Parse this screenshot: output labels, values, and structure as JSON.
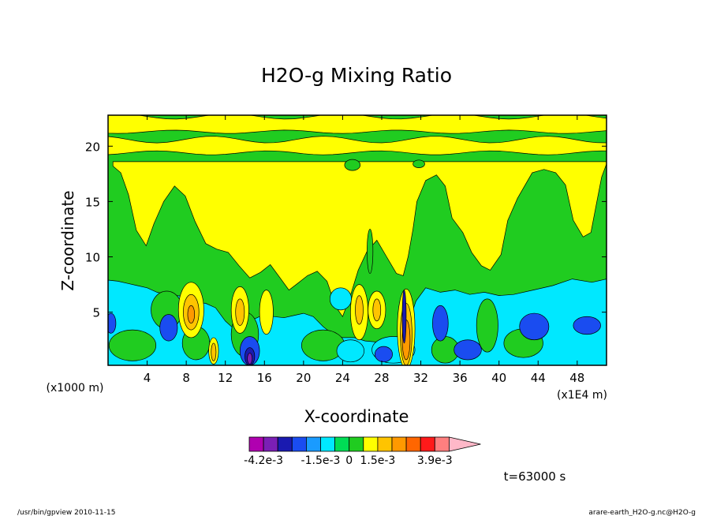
{
  "chart_data": {
    "type": "heatmap",
    "title": "H2O-g Mixing Ratio",
    "xlabel": "X-coordinate",
    "ylabel": "Z-coordinate",
    "x_scale_label": "(x1E4 m)",
    "y_scale_label": "(x1000 m)",
    "xlim": [
      0,
      51
    ],
    "ylim": [
      0.2,
      22.8
    ],
    "x_ticks": [
      4,
      8,
      12,
      16,
      20,
      24,
      28,
      32,
      36,
      40,
      44,
      48
    ],
    "y_ticks": [
      5,
      10,
      15,
      20
    ],
    "time_label": "t=63000 s",
    "colorbar": {
      "colors": [
        "#b000b0",
        "#7b1fb5",
        "#1a1ab0",
        "#1a4cf0",
        "#1a9bff",
        "#00e8ff",
        "#00dd55",
        "#20cc20",
        "#ffff00",
        "#ffc400",
        "#ff9900",
        "#ff6600",
        "#ff1a1a",
        "#ff7f7f",
        "#ffb8c8"
      ],
      "tick_labels": [
        "-4.2e-3",
        "-1.5e-3",
        "0",
        "1.5e-3",
        "3.9e-3"
      ]
    },
    "regions": [
      {
        "kind": "rect",
        "color": "#20cc20",
        "x0": 0,
        "x1": 51,
        "y0": 0.2,
        "y1": 22.8
      },
      {
        "kind": "band",
        "color": "#ffff00",
        "y_mid": 22.0,
        "half": 0.7,
        "amp": 0.25
      },
      {
        "kind": "band",
        "color": "#ffff00",
        "y_mid": 20.0,
        "half": 0.6,
        "amp": 0.3
      },
      {
        "kind": "poly",
        "color": "#ffff00",
        "pts": [
          [
            0.5,
            18.6
          ],
          [
            51,
            18.6
          ],
          [
            51,
            18.4
          ],
          [
            50.5,
            17.2
          ],
          [
            49.9,
            14.5
          ],
          [
            49.4,
            12.2
          ],
          [
            48.6,
            11.8
          ],
          [
            47.6,
            13.3
          ],
          [
            46.8,
            16.5
          ],
          [
            45.8,
            17.6
          ],
          [
            44.6,
            17.9
          ],
          [
            43.4,
            17.6
          ],
          [
            41.9,
            15.3
          ],
          [
            40.9,
            13.3
          ],
          [
            40.2,
            10.2
          ],
          [
            39.1,
            8.8
          ],
          [
            38.2,
            9.2
          ],
          [
            37.2,
            10.4
          ],
          [
            36.3,
            12.2
          ],
          [
            35.2,
            13.5
          ],
          [
            34.5,
            16.4
          ],
          [
            33.6,
            17.4
          ],
          [
            32.5,
            16.9
          ],
          [
            31.6,
            15.0
          ],
          [
            31.2,
            12.5
          ],
          [
            30.7,
            10.0
          ],
          [
            30.2,
            8.3
          ],
          [
            29.5,
            8.5
          ],
          [
            28.5,
            10.0
          ],
          [
            27.5,
            11.5
          ],
          [
            26.5,
            10.5
          ],
          [
            25.6,
            8.8
          ],
          [
            24.8,
            6.5
          ],
          [
            24.0,
            4.6
          ],
          [
            23.3,
            5.5
          ],
          [
            22.4,
            7.8
          ],
          [
            21.4,
            8.7
          ],
          [
            20.4,
            8.3
          ],
          [
            19.4,
            7.6
          ],
          [
            18.5,
            7.0
          ],
          [
            17.6,
            8.1
          ],
          [
            16.6,
            9.3
          ],
          [
            15.6,
            8.6
          ],
          [
            14.5,
            8.1
          ],
          [
            13.4,
            9.2
          ],
          [
            12.3,
            10.4
          ],
          [
            11.1,
            10.7
          ],
          [
            10.0,
            11.2
          ],
          [
            8.9,
            13.2
          ],
          [
            7.9,
            15.5
          ],
          [
            6.8,
            16.4
          ],
          [
            5.7,
            15.0
          ],
          [
            4.7,
            13.0
          ],
          [
            3.9,
            11.0
          ],
          [
            2.9,
            12.4
          ],
          [
            2.1,
            15.6
          ],
          [
            1.3,
            17.6
          ],
          [
            0.5,
            18.2
          ]
        ]
      },
      {
        "kind": "poly",
        "color": "#00e8ff",
        "pts": [
          [
            0,
            0.2
          ],
          [
            51,
            0.2
          ],
          [
            51,
            8.0
          ],
          [
            49.5,
            7.7
          ],
          [
            47.5,
            8.0
          ],
          [
            45.5,
            7.4
          ],
          [
            43.5,
            7.0
          ],
          [
            41.5,
            6.6
          ],
          [
            40.0,
            6.5
          ],
          [
            38.5,
            6.8
          ],
          [
            37.0,
            6.6
          ],
          [
            35.5,
            7.0
          ],
          [
            34.0,
            6.8
          ],
          [
            32.5,
            7.2
          ],
          [
            31.5,
            6.0
          ],
          [
            30.8,
            4.2
          ],
          [
            29.8,
            2.7
          ],
          [
            28.6,
            2.4
          ],
          [
            27.5,
            2.3
          ],
          [
            26.3,
            2.4
          ],
          [
            25.2,
            2.7
          ],
          [
            24.0,
            2.7
          ],
          [
            23.0,
            3.0
          ],
          [
            22.0,
            3.7
          ],
          [
            21.0,
            4.6
          ],
          [
            20.0,
            4.9
          ],
          [
            19.0,
            4.7
          ],
          [
            18.0,
            4.5
          ],
          [
            17.0,
            4.6
          ],
          [
            16.0,
            4.8
          ],
          [
            15.0,
            4.4
          ],
          [
            14.0,
            3.9
          ],
          [
            13.0,
            3.4
          ],
          [
            12.0,
            4.2
          ],
          [
            11.0,
            5.4
          ],
          [
            10.0,
            5.8
          ],
          [
            9.0,
            5.9
          ],
          [
            8.0,
            6.4
          ],
          [
            7.0,
            6.5
          ],
          [
            6.0,
            6.6
          ],
          [
            5.0,
            6.8
          ],
          [
            4.0,
            7.2
          ],
          [
            3.0,
            7.4
          ],
          [
            2.0,
            7.6
          ],
          [
            1.0,
            7.8
          ],
          [
            0,
            7.9
          ]
        ]
      },
      {
        "kind": "ellipse",
        "color": "#20cc20",
        "cx": 6.0,
        "cy": 5.2,
        "rx": 1.6,
        "ry": 1.7
      },
      {
        "kind": "ellipse",
        "color": "#20cc20",
        "cx": 2.5,
        "cy": 2.0,
        "rx": 2.4,
        "ry": 1.4
      },
      {
        "kind": "ellipse",
        "color": "#20cc20",
        "cx": 14.0,
        "cy": 3.0,
        "rx": 1.4,
        "ry": 2.0
      },
      {
        "kind": "ellipse",
        "color": "#20cc20",
        "cx": 9.0,
        "cy": 2.2,
        "rx": 1.4,
        "ry": 1.5
      },
      {
        "kind": "ellipse",
        "color": "#20cc20",
        "cx": 22.0,
        "cy": 2.0,
        "rx": 2.2,
        "ry": 1.4
      },
      {
        "kind": "ellipse",
        "color": "#20cc20",
        "cx": 42.5,
        "cy": 2.2,
        "rx": 2.0,
        "ry": 1.3
      },
      {
        "kind": "ellipse",
        "color": "#20cc20",
        "cx": 38.8,
        "cy": 3.8,
        "rx": 1.1,
        "ry": 2.4
      },
      {
        "kind": "ellipse",
        "color": "#20cc20",
        "cx": 34.5,
        "cy": 1.6,
        "rx": 1.4,
        "ry": 1.2
      },
      {
        "kind": "ellipse",
        "color": "#00e8ff",
        "cx": 29.2,
        "cy": 1.6,
        "rx": 2.2,
        "ry": 1.2
      },
      {
        "kind": "ellipse",
        "color": "#00e8ff",
        "cx": 24.8,
        "cy": 1.5,
        "rx": 1.4,
        "ry": 1.0
      },
      {
        "kind": "ellipse",
        "color": "#00e8ff",
        "cx": 23.8,
        "cy": 6.2,
        "rx": 1.1,
        "ry": 1.0
      },
      {
        "kind": "ellipse",
        "color": "#1a4cf0",
        "cx": 6.2,
        "cy": 3.6,
        "rx": 0.9,
        "ry": 1.2
      },
      {
        "kind": "ellipse",
        "color": "#1a4cf0",
        "cx": 14.5,
        "cy": 1.5,
        "rx": 1.0,
        "ry": 1.3
      },
      {
        "kind": "ellipse",
        "color": "#1a4cf0",
        "cx": 28.2,
        "cy": 1.2,
        "rx": 0.9,
        "ry": 0.7
      },
      {
        "kind": "ellipse",
        "color": "#1a4cf0",
        "cx": 36.8,
        "cy": 1.6,
        "rx": 1.4,
        "ry": 0.9
      },
      {
        "kind": "ellipse",
        "color": "#1a4cf0",
        "cx": 43.6,
        "cy": 3.7,
        "rx": 1.5,
        "ry": 1.2
      },
      {
        "kind": "ellipse",
        "color": "#1a4cf0",
        "cx": 49.0,
        "cy": 3.8,
        "rx": 1.4,
        "ry": 0.8
      },
      {
        "kind": "ellipse",
        "color": "#1a4cf0",
        "cx": 0.3,
        "cy": 4.0,
        "rx": 0.5,
        "ry": 0.9
      },
      {
        "kind": "ellipse",
        "color": "#1a4cf0",
        "cx": 34.0,
        "cy": 4.0,
        "rx": 0.8,
        "ry": 1.6
      },
      {
        "kind": "ellipse",
        "color": "#1a1ab0",
        "cx": 14.5,
        "cy": 1.0,
        "rx": 0.5,
        "ry": 0.8
      },
      {
        "kind": "ellipse",
        "color": "#7b1fb5",
        "cx": 14.5,
        "cy": 0.8,
        "rx": 0.25,
        "ry": 0.5
      },
      {
        "kind": "ellipse",
        "color": "#ffff00",
        "cx": 8.5,
        "cy": 5.2,
        "rx": 1.3,
        "ry": 2.5
      },
      {
        "kind": "ellipse",
        "color": "#ffc400",
        "cx": 8.5,
        "cy": 5.0,
        "rx": 0.8,
        "ry": 1.6
      },
      {
        "kind": "ellipse",
        "color": "#ff9900",
        "cx": 8.5,
        "cy": 4.8,
        "rx": 0.35,
        "ry": 0.8
      },
      {
        "kind": "ellipse",
        "color": "#ffff00",
        "cx": 13.5,
        "cy": 5.2,
        "rx": 0.9,
        "ry": 2.1
      },
      {
        "kind": "ellipse",
        "color": "#ffc400",
        "cx": 13.5,
        "cy": 5.0,
        "rx": 0.45,
        "ry": 1.2
      },
      {
        "kind": "ellipse",
        "color": "#ffff00",
        "cx": 16.2,
        "cy": 5.0,
        "rx": 0.7,
        "ry": 2.0
      },
      {
        "kind": "ellipse",
        "color": "#ffff00",
        "cx": 10.8,
        "cy": 1.5,
        "rx": 0.5,
        "ry": 1.2
      },
      {
        "kind": "ellipse",
        "color": "#ffc400",
        "cx": 10.8,
        "cy": 1.4,
        "rx": 0.25,
        "ry": 0.8
      },
      {
        "kind": "ellipse",
        "color": "#ffff00",
        "cx": 25.7,
        "cy": 5.0,
        "rx": 0.9,
        "ry": 2.5
      },
      {
        "kind": "ellipse",
        "color": "#ffc400",
        "cx": 25.7,
        "cy": 5.2,
        "rx": 0.4,
        "ry": 1.3
      },
      {
        "kind": "ellipse",
        "color": "#ffff00",
        "cx": 27.5,
        "cy": 5.2,
        "rx": 0.9,
        "ry": 1.7
      },
      {
        "kind": "ellipse",
        "color": "#ffc400",
        "cx": 27.5,
        "cy": 5.2,
        "rx": 0.4,
        "ry": 1.0
      },
      {
        "kind": "ellipse",
        "color": "#20cc20",
        "cx": 25.0,
        "cy": 18.3,
        "rx": 0.8,
        "ry": 0.5
      },
      {
        "kind": "ellipse",
        "color": "#20cc20",
        "cx": 31.8,
        "cy": 18.4,
        "rx": 0.6,
        "ry": 0.35
      },
      {
        "kind": "ellipse",
        "color": "#20cc20",
        "cx": 26.8,
        "cy": 10.5,
        "rx": 0.3,
        "ry": 2.0
      },
      {
        "kind": "ellipse",
        "color": "#ffff00",
        "cx": 30.5,
        "cy": 3.5,
        "rx": 0.9,
        "ry": 3.6
      },
      {
        "kind": "ellipse",
        "color": "#ffc400",
        "cx": 30.5,
        "cy": 3.0,
        "rx": 0.6,
        "ry": 2.8
      },
      {
        "kind": "ellipse",
        "color": "#ff9900",
        "cx": 30.5,
        "cy": 2.5,
        "rx": 0.4,
        "ry": 1.8
      },
      {
        "kind": "ellipse",
        "color": "#1a1ab0",
        "cx": 30.3,
        "cy": 4.6,
        "rx": 0.2,
        "ry": 2.4
      }
    ]
  },
  "footer": {
    "left": "/usr/bin/gpview  2010-11-15",
    "right": "arare-earth_H2O-g.nc@H2O-g"
  }
}
